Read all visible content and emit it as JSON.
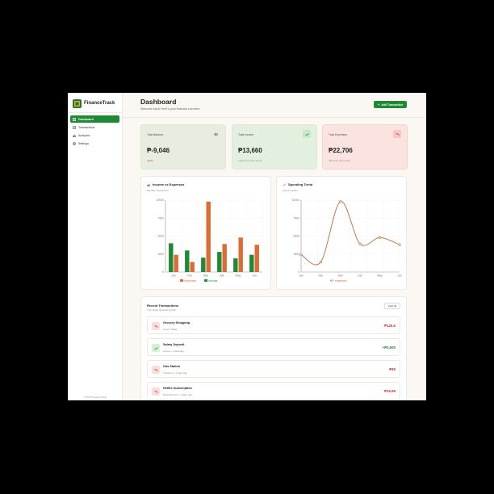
{
  "app": {
    "name": "FinanceTrack",
    "footer": "© 2025 FinanceTrack"
  },
  "sidebar": {
    "items": [
      {
        "label": "Dashboard",
        "icon": "grid-icon"
      },
      {
        "label": "Transactions",
        "icon": "receipt-icon"
      },
      {
        "label": "Analytics",
        "icon": "chart-icon"
      },
      {
        "label": "Settings",
        "icon": "gear-icon"
      }
    ]
  },
  "header": {
    "title": "Dashboard",
    "subtitle": "Welcome back! Here's your financial overview.",
    "add_button": "Add Transaction"
  },
  "cards": [
    {
      "label": "Total Balance",
      "value": "₱-9,046",
      "sub": "-$464",
      "icon": "eye-icon",
      "bg": "#e7eedf",
      "sub_color": "#d04848"
    },
    {
      "label": "Total Income",
      "value": "₱13,660",
      "sub": "+12% from last month",
      "icon": "trend-up-icon",
      "bg": "#e3f0df",
      "sub_color": "#888888"
    },
    {
      "label": "Total Expenses",
      "value": "₱22,706",
      "sub": "-8% from last month",
      "icon": "trend-down-icon",
      "bg": "#fbe3e0",
      "sub_color": "#888888"
    }
  ],
  "income_chart": {
    "title": "Income vs Expenses",
    "subtitle": "Monthly comparison"
  },
  "trend_chart": {
    "title": "Spending Trend",
    "subtitle": "Last 6 months"
  },
  "chart_data": [
    {
      "type": "bar",
      "title": "Income vs Expenses",
      "categories": [
        "Jan",
        "Feb",
        "Mar",
        "Apr",
        "May",
        "Jun"
      ],
      "series": [
        {
          "name": "income",
          "color": "#1e8a36",
          "values": [
            4000,
            3000,
            2000,
            2800,
            1900,
            2400
          ]
        },
        {
          "name": "expenses",
          "color": "#e06a30",
          "values": [
            2400,
            1400,
            9800,
            3900,
            4800,
            3800
          ]
        }
      ],
      "yticks": [
        "0",
        "2500",
        "5000",
        "7500",
        "10000"
      ],
      "ylim": [
        0,
        10000
      ],
      "legend": "bottom",
      "grid": true
    },
    {
      "type": "line",
      "title": "Spending Trend",
      "categories": [
        "Jan",
        "Feb",
        "Mar",
        "Apr",
        "May",
        "Jun"
      ],
      "series": [
        {
          "name": "expenses",
          "color": "#c07a4a",
          "values": [
            2400,
            1400,
            9800,
            3900,
            4800,
            3800
          ]
        }
      ],
      "yticks": [
        "0",
        "2500",
        "5000",
        "7500",
        "10000"
      ],
      "ylim": [
        0,
        10000
      ],
      "legend": "bottom",
      "grid": true
    }
  ],
  "transactions": {
    "title": "Recent Transactions",
    "subtitle": "Your latest financial activity",
    "view_all": "View All",
    "items": [
      {
        "name": "Grocery Shopping",
        "meta": "Food • Today",
        "amount": "₱125.5",
        "type": "expense"
      },
      {
        "name": "Salary Deposit",
        "meta": "Income • Yesterday",
        "amount": "+₱3,500",
        "type": "income"
      },
      {
        "name": "Gas Station",
        "meta": "Transport • 2 days ago",
        "amount": "₱45",
        "type": "expense"
      },
      {
        "name": "Netflix Subscription",
        "meta": "Entertainment • 3 days ago",
        "amount": "₱15.99",
        "type": "expense"
      }
    ]
  },
  "colors": {
    "accent": "#1e8a36",
    "expense": "#e06a30",
    "expense_text": "#c0303a",
    "income_text": "#1e8a36"
  }
}
